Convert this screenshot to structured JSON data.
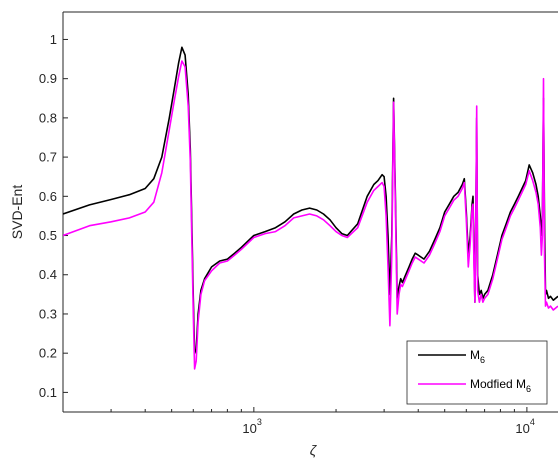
{
  "chart_data": {
    "type": "line",
    "xscale": "log",
    "xlim": [
      200,
      13000
    ],
    "ylim": [
      0.05,
      1.07
    ],
    "xlabel": "ζ",
    "ylabel": "SVD-Ent",
    "grid": false,
    "legend_position": "bottom-right",
    "x_ticks": [
      {
        "value": 1000,
        "base": "10",
        "exp": "3"
      },
      {
        "value": 10000,
        "base": "10",
        "exp": "4"
      }
    ],
    "y_ticks": [
      {
        "value": 0.1,
        "label": "0.1"
      },
      {
        "value": 0.2,
        "label": "0.2"
      },
      {
        "value": 0.3,
        "label": "0.3"
      },
      {
        "value": 0.4,
        "label": "0.4"
      },
      {
        "value": 0.5,
        "label": "0.5"
      },
      {
        "value": 0.6,
        "label": "0.6"
      },
      {
        "value": 0.7,
        "label": "0.7"
      },
      {
        "value": 0.8,
        "label": "0.8"
      },
      {
        "value": 0.9,
        "label": "0.9"
      },
      {
        "value": 1,
        "label": "1"
      }
    ],
    "series": [
      {
        "name": "M",
        "name_sub": "6",
        "color": "#000000",
        "x": [
          200,
          250,
          300,
          350,
          400,
          430,
          460,
          490,
          510,
          530,
          545,
          560,
          575,
          585,
          593,
          600,
          607,
          615,
          625,
          640,
          660,
          700,
          750,
          800,
          850,
          900,
          1000,
          1100,
          1200,
          1300,
          1400,
          1500,
          1600,
          1700,
          1800,
          1900,
          2000,
          2100,
          2200,
          2400,
          2600,
          2750,
          2850,
          2950,
          3000,
          3050,
          3100,
          3150,
          3200,
          3250,
          3300,
          3350,
          3400,
          3450,
          3500,
          3600,
          3700,
          3800,
          3900,
          4000,
          4200,
          4400,
          4600,
          4800,
          5000,
          5200,
          5400,
          5600,
          5800,
          5900,
          6000,
          6100,
          6200,
          6300,
          6350,
          6400,
          6450,
          6500,
          6550,
          6600,
          6700,
          6800,
          6900,
          7000,
          7200,
          7500,
          7800,
          8100,
          8400,
          8700,
          9000,
          9300,
          9600,
          9900,
          10200,
          10500,
          10800,
          11000,
          11200,
          11300,
          11400,
          11500,
          11600,
          11700,
          11800,
          12000,
          12200,
          12500,
          13000
        ],
        "y": [
          0.555,
          0.578,
          0.592,
          0.604,
          0.62,
          0.645,
          0.7,
          0.8,
          0.87,
          0.94,
          0.98,
          0.96,
          0.86,
          0.72,
          0.52,
          0.34,
          0.2,
          0.21,
          0.3,
          0.36,
          0.39,
          0.42,
          0.435,
          0.44,
          0.455,
          0.47,
          0.5,
          0.51,
          0.52,
          0.535,
          0.555,
          0.565,
          0.57,
          0.565,
          0.555,
          0.54,
          0.52,
          0.505,
          0.5,
          0.53,
          0.6,
          0.63,
          0.64,
          0.655,
          0.65,
          0.6,
          0.5,
          0.35,
          0.5,
          0.85,
          0.6,
          0.34,
          0.37,
          0.39,
          0.38,
          0.4,
          0.42,
          0.44,
          0.455,
          0.45,
          0.44,
          0.46,
          0.49,
          0.52,
          0.56,
          0.58,
          0.6,
          0.61,
          0.63,
          0.645,
          0.56,
          0.45,
          0.5,
          0.58,
          0.6,
          0.45,
          0.33,
          0.55,
          0.8,
          0.4,
          0.35,
          0.36,
          0.34,
          0.35,
          0.36,
          0.4,
          0.45,
          0.5,
          0.53,
          0.56,
          0.58,
          0.6,
          0.62,
          0.64,
          0.68,
          0.66,
          0.63,
          0.6,
          0.55,
          0.5,
          0.55,
          0.85,
          0.55,
          0.35,
          0.36,
          0.34,
          0.345,
          0.335,
          0.345
        ]
      },
      {
        "name": "Modfied M",
        "name_sub": "6",
        "color": "#ff00ff",
        "x": [
          200,
          250,
          300,
          350,
          400,
          430,
          460,
          490,
          510,
          530,
          545,
          560,
          575,
          585,
          593,
          600,
          607,
          615,
          625,
          640,
          660,
          700,
          750,
          800,
          850,
          900,
          1000,
          1100,
          1200,
          1300,
          1400,
          1500,
          1600,
          1700,
          1800,
          1900,
          2000,
          2100,
          2200,
          2400,
          2600,
          2750,
          2850,
          2950,
          3000,
          3050,
          3100,
          3150,
          3200,
          3250,
          3300,
          3350,
          3400,
          3450,
          3500,
          3600,
          3700,
          3800,
          3900,
          4000,
          4200,
          4400,
          4600,
          4800,
          5000,
          5200,
          5400,
          5600,
          5800,
          5900,
          6000,
          6100,
          6200,
          6300,
          6350,
          6400,
          6450,
          6500,
          6550,
          6600,
          6700,
          6800,
          6900,
          7000,
          7200,
          7500,
          7800,
          8100,
          8400,
          8700,
          9000,
          9300,
          9600,
          9900,
          10200,
          10500,
          10800,
          11000,
          11200,
          11300,
          11400,
          11500,
          11600,
          11700,
          11800,
          12000,
          12200,
          12500,
          13000
        ],
        "y": [
          0.5,
          0.525,
          0.535,
          0.545,
          0.56,
          0.585,
          0.66,
          0.77,
          0.84,
          0.905,
          0.945,
          0.93,
          0.83,
          0.69,
          0.48,
          0.3,
          0.16,
          0.18,
          0.28,
          0.35,
          0.385,
          0.41,
          0.43,
          0.435,
          0.45,
          0.465,
          0.495,
          0.505,
          0.51,
          0.525,
          0.545,
          0.55,
          0.555,
          0.55,
          0.54,
          0.525,
          0.51,
          0.5,
          0.495,
          0.52,
          0.585,
          0.615,
          0.625,
          0.635,
          0.625,
          0.55,
          0.42,
          0.27,
          0.45,
          0.84,
          0.57,
          0.3,
          0.35,
          0.375,
          0.37,
          0.39,
          0.41,
          0.43,
          0.445,
          0.44,
          0.43,
          0.45,
          0.48,
          0.51,
          0.55,
          0.57,
          0.59,
          0.6,
          0.62,
          0.635,
          0.54,
          0.42,
          0.48,
          0.57,
          0.58,
          0.42,
          0.33,
          0.53,
          0.83,
          0.36,
          0.33,
          0.35,
          0.33,
          0.34,
          0.35,
          0.39,
          0.44,
          0.49,
          0.52,
          0.55,
          0.57,
          0.59,
          0.61,
          0.63,
          0.665,
          0.64,
          0.61,
          0.58,
          0.52,
          0.45,
          0.5,
          0.9,
          0.45,
          0.32,
          0.33,
          0.315,
          0.32,
          0.31,
          0.32
        ]
      }
    ]
  }
}
